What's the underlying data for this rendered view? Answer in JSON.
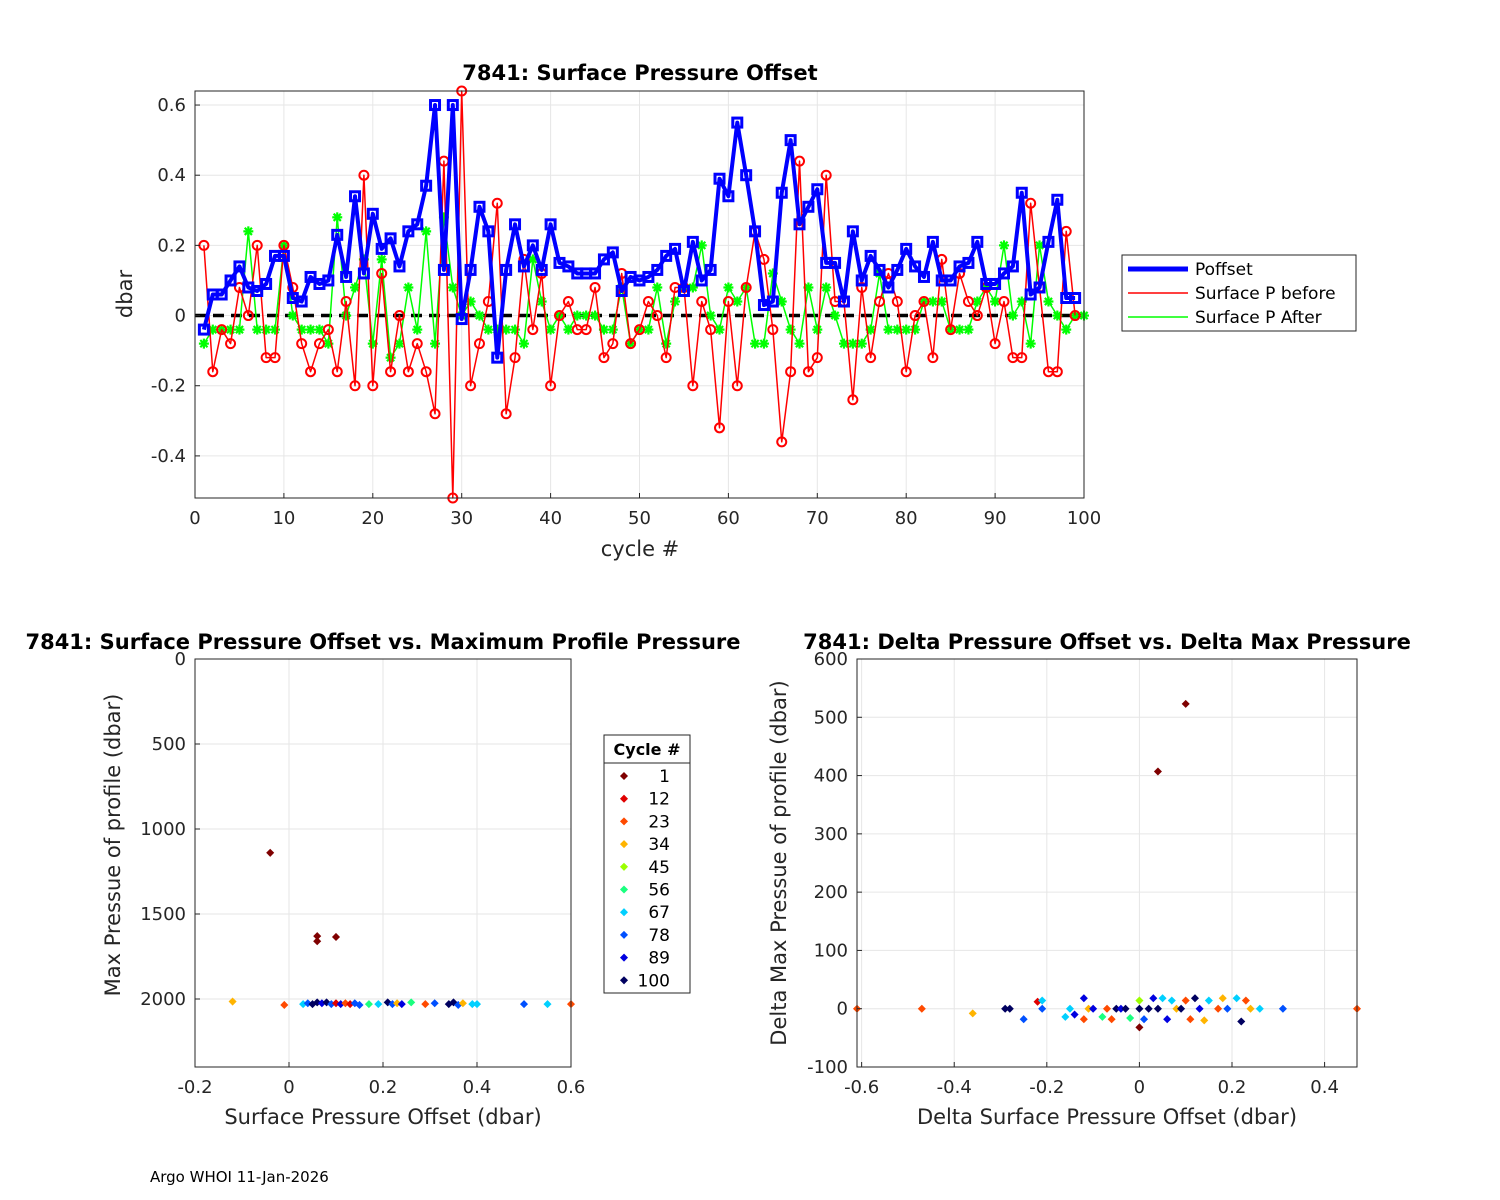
{
  "footer": "Argo WHOI 11-Jan-2026",
  "colors": {
    "poffset": "#0000ff",
    "before": "#ff0000",
    "after": "#00ff00",
    "cycle_palette": [
      "#7f0000",
      "#e00000",
      "#ff4a00",
      "#ffb400",
      "#9bff00",
      "#1aff7f",
      "#00d0ff",
      "#0050ff",
      "#0000e0",
      "#000060"
    ]
  },
  "chart_data": [
    {
      "type": "line",
      "title": "7841: Surface Pressure Offset",
      "xlabel": "cycle #",
      "ylabel": "dbar",
      "xlim": [
        0,
        100
      ],
      "ylim": [
        -0.52,
        0.64
      ],
      "xticks": [
        "0",
        "10",
        "20",
        "30",
        "40",
        "50",
        "60",
        "70",
        "80",
        "90",
        "100"
      ],
      "yticks": [
        "-0.4",
        "-0.2",
        "0",
        "0.2",
        "0.4",
        "0.6"
      ],
      "grid": true,
      "legend": [
        "Poffset",
        "Surface P before",
        "Surface P After"
      ],
      "legend_position": "outside-right",
      "series": [
        {
          "name": "Poffset",
          "marker": "square",
          "values": [
            -0.04,
            0.06,
            0.06,
            0.1,
            0.14,
            0.08,
            0.07,
            0.09,
            0.17,
            0.17,
            0.05,
            0.04,
            0.11,
            0.09,
            0.1,
            0.23,
            0.11,
            0.34,
            0.12,
            0.29,
            0.19,
            0.22,
            0.14,
            0.24,
            0.26,
            0.37,
            0.6,
            0.13,
            0.6,
            -0.01,
            0.13,
            0.31,
            0.24,
            -0.12,
            0.13,
            0.26,
            0.14,
            0.2,
            0.13,
            0.26,
            0.15,
            0.14,
            0.12,
            0.12,
            0.12,
            0.16,
            0.18,
            0.07,
            0.11,
            0.1,
            0.11,
            0.13,
            0.17,
            0.19,
            0.07,
            0.21,
            0.1,
            0.13,
            0.39,
            0.34,
            0.55,
            0.4,
            0.24,
            0.03,
            0.04,
            0.35,
            0.5,
            0.26,
            0.31,
            0.36,
            0.15,
            0.15,
            0.04,
            0.24,
            0.1,
            0.17,
            0.13,
            0.08,
            0.13,
            0.19,
            0.14,
            0.11,
            0.21,
            0.1,
            0.1,
            0.14,
            0.15,
            0.21,
            0.09,
            0.09,
            0.12,
            0.14,
            0.35,
            0.06,
            0.08,
            0.21,
            0.33,
            0.05,
            0.05
          ]
        },
        {
          "name": "Surface P before",
          "marker": "circle",
          "values": [
            0.2,
            -0.16,
            -0.04,
            -0.08,
            0.08,
            0.0,
            0.2,
            -0.12,
            -0.12,
            0.2,
            0.08,
            -0.08,
            -0.16,
            -0.08,
            -0.04,
            -0.16,
            0.04,
            -0.2,
            0.4,
            -0.2,
            0.12,
            -0.16,
            0.0,
            -0.16,
            -0.08,
            -0.16,
            -0.28,
            0.44,
            -0.52,
            0.64,
            -0.2,
            -0.08,
            0.04,
            0.32,
            -0.28,
            -0.12,
            0.16,
            -0.04,
            0.12,
            -0.2,
            0.0,
            0.04,
            -0.04,
            -0.04,
            0.08,
            -0.12,
            -0.08,
            0.12,
            -0.08,
            -0.04,
            0.04,
            0.0,
            -0.12,
            0.08,
            0.08,
            -0.2,
            0.04,
            -0.04,
            -0.32,
            0.04,
            -0.2,
            0.08,
            0.24,
            0.16,
            -0.04,
            -0.36,
            -0.16,
            0.44,
            -0.16,
            -0.12,
            0.4,
            0.04,
            0.04,
            -0.24,
            0.08,
            -0.12,
            0.04,
            0.12,
            0.04,
            -0.16,
            0.0,
            0.04,
            -0.12,
            0.16,
            -0.04,
            0.12,
            0.04,
            0.0,
            0.08,
            -0.08,
            0.04,
            -0.12,
            -0.12,
            0.32,
            0.08,
            -0.16,
            -0.16,
            0.24,
            0.0
          ]
        },
        {
          "name": "Surface P After",
          "marker": "asterisk",
          "values": [
            -0.08,
            -0.04,
            -0.04,
            -0.04,
            -0.04,
            0.24,
            -0.04,
            -0.04,
            -0.04,
            0.2,
            0.0,
            -0.04,
            -0.04,
            -0.04,
            -0.08,
            0.28,
            0.0,
            0.08,
            0.16,
            -0.08,
            0.16,
            -0.12,
            -0.08,
            0.08,
            -0.04,
            0.24,
            -0.08,
            0.28,
            0.08,
            0.0,
            0.04,
            0.0,
            -0.04,
            -0.04,
            -0.04,
            -0.04,
            -0.08,
            0.16,
            0.04,
            -0.04,
            0.0,
            -0.04,
            0.0,
            0.0,
            0.0,
            -0.04,
            -0.04,
            0.08,
            -0.08,
            -0.04,
            -0.04,
            0.08,
            -0.08,
            0.04,
            0.08,
            0.08,
            0.2,
            0.0,
            -0.04,
            0.08,
            0.04,
            0.08,
            -0.08,
            -0.08,
            0.12,
            0.04,
            -0.04,
            -0.08,
            0.08,
            -0.04,
            0.08,
            0.0,
            -0.08,
            -0.08,
            -0.08,
            -0.04,
            0.12,
            -0.04,
            -0.04,
            -0.04,
            -0.04,
            0.04,
            0.04,
            0.04,
            -0.04,
            -0.04,
            -0.04,
            0.04,
            0.08,
            0.04,
            0.2,
            0.0,
            0.04,
            -0.08,
            0.2,
            0.04,
            0.0,
            -0.04,
            0.0,
            0.0
          ]
        }
      ],
      "reference_line": 0
    },
    {
      "type": "scatter",
      "title": "7841: Surface Pressure Offset vs. Maximum Profile Pressure",
      "xlabel": "Surface Pressure Offset (dbar)",
      "ylabel": "Max Pressue of profile (dbar)",
      "xlim": [
        -0.2,
        0.6
      ],
      "ylim": [
        0,
        2400
      ],
      "y_reversed": true,
      "xticks": [
        "-0.2",
        "0",
        "0.2",
        "0.4",
        "0.6"
      ],
      "yticks": [
        "0",
        "500",
        "1000",
        "1500",
        "2000"
      ],
      "grid": true,
      "legend_title": "Cycle #",
      "legend": [
        "1",
        "12",
        "23",
        "34",
        "45",
        "56",
        "67",
        "78",
        "89",
        "100"
      ],
      "legend_position": "right",
      "points": [
        [
          -0.04,
          1140,
          0
        ],
        [
          0.06,
          1630,
          0
        ],
        [
          0.06,
          1660,
          0
        ],
        [
          0.1,
          1635,
          0
        ],
        [
          -0.12,
          2015,
          3
        ],
        [
          -0.01,
          2035,
          2
        ],
        [
          0.03,
          2030,
          6
        ],
        [
          0.04,
          2025,
          7
        ],
        [
          0.05,
          2030,
          9
        ],
        [
          0.06,
          2020,
          9
        ],
        [
          0.07,
          2025,
          8
        ],
        [
          0.08,
          2020,
          9
        ],
        [
          0.09,
          2030,
          7
        ],
        [
          0.1,
          2025,
          1
        ],
        [
          0.11,
          2030,
          8
        ],
        [
          0.12,
          2025,
          2
        ],
        [
          0.13,
          2030,
          1
        ],
        [
          0.14,
          2025,
          7
        ],
        [
          0.15,
          2035,
          7
        ],
        [
          0.17,
          2030,
          5
        ],
        [
          0.19,
          2030,
          6
        ],
        [
          0.21,
          2020,
          9
        ],
        [
          0.22,
          2030,
          7
        ],
        [
          0.23,
          2025,
          3
        ],
        [
          0.24,
          2030,
          8
        ],
        [
          0.26,
          2020,
          5
        ],
        [
          0.29,
          2030,
          2
        ],
        [
          0.31,
          2025,
          7
        ],
        [
          0.34,
          2030,
          9
        ],
        [
          0.35,
          2020,
          9
        ],
        [
          0.36,
          2035,
          7
        ],
        [
          0.37,
          2025,
          3
        ],
        [
          0.39,
          2030,
          6
        ],
        [
          0.4,
          2030,
          6
        ],
        [
          0.5,
          2030,
          7
        ],
        [
          0.55,
          2030,
          6
        ],
        [
          0.6,
          2030,
          2
        ]
      ]
    },
    {
      "type": "scatter",
      "title": "7841: Delta Pressure Offset vs. Delta Max Pressure",
      "xlabel": "Delta Surface Pressure Offset (dbar)",
      "ylabel": "Delta Max Pressue of profile (dbar)",
      "xlim": [
        -0.61,
        0.47
      ],
      "ylim": [
        -100,
        600
      ],
      "xticks": [
        "-0.6",
        "-0.4",
        "-0.2",
        "0",
        "0.2",
        "0.4"
      ],
      "yticks": [
        "-100",
        "0",
        "100",
        "200",
        "300",
        "400",
        "500",
        "600"
      ],
      "grid": true,
      "points": [
        [
          0.1,
          523,
          0
        ],
        [
          0.04,
          407,
          0
        ],
        [
          0.0,
          -32,
          0
        ],
        [
          -0.61,
          0,
          2
        ],
        [
          -0.47,
          0,
          2
        ],
        [
          -0.36,
          -8,
          3
        ],
        [
          -0.29,
          0,
          9
        ],
        [
          -0.28,
          0,
          9
        ],
        [
          -0.25,
          -18,
          7
        ],
        [
          -0.22,
          12,
          1
        ],
        [
          -0.21,
          14,
          6
        ],
        [
          -0.21,
          0,
          7
        ],
        [
          -0.16,
          -14,
          6
        ],
        [
          -0.15,
          0,
          6
        ],
        [
          -0.14,
          -10,
          8
        ],
        [
          -0.12,
          18,
          8
        ],
        [
          -0.12,
          -18,
          2
        ],
        [
          -0.11,
          0,
          3
        ],
        [
          -0.1,
          0,
          8
        ],
        [
          -0.08,
          -14,
          5
        ],
        [
          -0.07,
          0,
          2
        ],
        [
          -0.06,
          -18,
          2
        ],
        [
          -0.05,
          0,
          9
        ],
        [
          -0.04,
          0,
          8
        ],
        [
          -0.03,
          0,
          9
        ],
        [
          -0.02,
          -16,
          5
        ],
        [
          0.0,
          14,
          4
        ],
        [
          0.0,
          0,
          9
        ],
        [
          0.01,
          -18,
          7
        ],
        [
          0.02,
          0,
          9
        ],
        [
          0.03,
          18,
          8
        ],
        [
          0.04,
          0,
          9
        ],
        [
          0.05,
          18,
          6
        ],
        [
          0.06,
          -18,
          8
        ],
        [
          0.07,
          14,
          6
        ],
        [
          0.08,
          0,
          3
        ],
        [
          0.09,
          0,
          9
        ],
        [
          0.1,
          14,
          2
        ],
        [
          0.11,
          -18,
          2
        ],
        [
          0.12,
          18,
          9
        ],
        [
          0.13,
          0,
          8
        ],
        [
          0.14,
          -20,
          3
        ],
        [
          0.15,
          14,
          6
        ],
        [
          0.17,
          0,
          2
        ],
        [
          0.18,
          18,
          3
        ],
        [
          0.19,
          0,
          7
        ],
        [
          0.21,
          18,
          6
        ],
        [
          0.22,
          -22,
          9
        ],
        [
          0.23,
          14,
          2
        ],
        [
          0.24,
          0,
          3
        ],
        [
          0.26,
          0,
          6
        ],
        [
          0.31,
          0,
          7
        ],
        [
          0.47,
          0,
          2
        ]
      ]
    }
  ]
}
